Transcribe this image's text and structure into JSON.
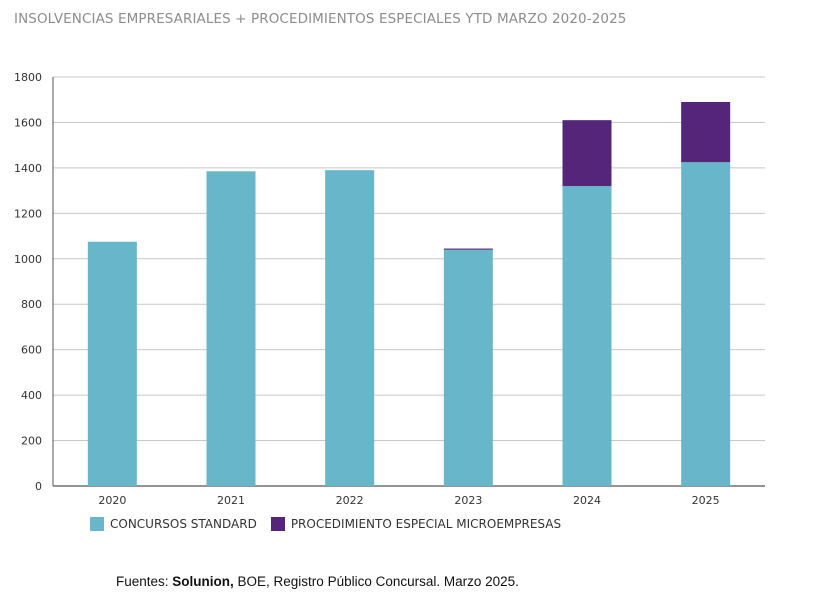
{
  "colors": {
    "standard": "#68b6c9",
    "micro": "#552579",
    "grid": "#c8c8c8",
    "axis": "#555555"
  },
  "chart_data": {
    "type": "bar",
    "stacked": true,
    "title": "INSOLVENCIAS EMPRESARIALES + PROCEDIMIENTOS ESPECIALES YTD MARZO 2020-2025",
    "xlabel": "",
    "ylabel": "",
    "categories": [
      "2020",
      "2021",
      "2022",
      "2023",
      "2024",
      "2025"
    ],
    "series": [
      {
        "name": "CONCURSOS STANDARD",
        "values": [
          1075,
          1385,
          1390,
          1040,
          1320,
          1425
        ]
      },
      {
        "name": "PROCEDIMIENTO ESPECIAL MICROEMPRESAS",
        "values": [
          0,
          0,
          0,
          5,
          290,
          265
        ]
      }
    ],
    "ylim": [
      0,
      1800
    ],
    "yticks": [
      0,
      200,
      400,
      600,
      800,
      1000,
      1200,
      1400,
      1600,
      1800
    ],
    "grid": true,
    "legend_position": "bottom-left"
  },
  "footer": {
    "prefix": "Fuentes: ",
    "source_bold": "Solunion,",
    "rest": " BOE, Registro Público Concursal. Marzo 2025."
  }
}
